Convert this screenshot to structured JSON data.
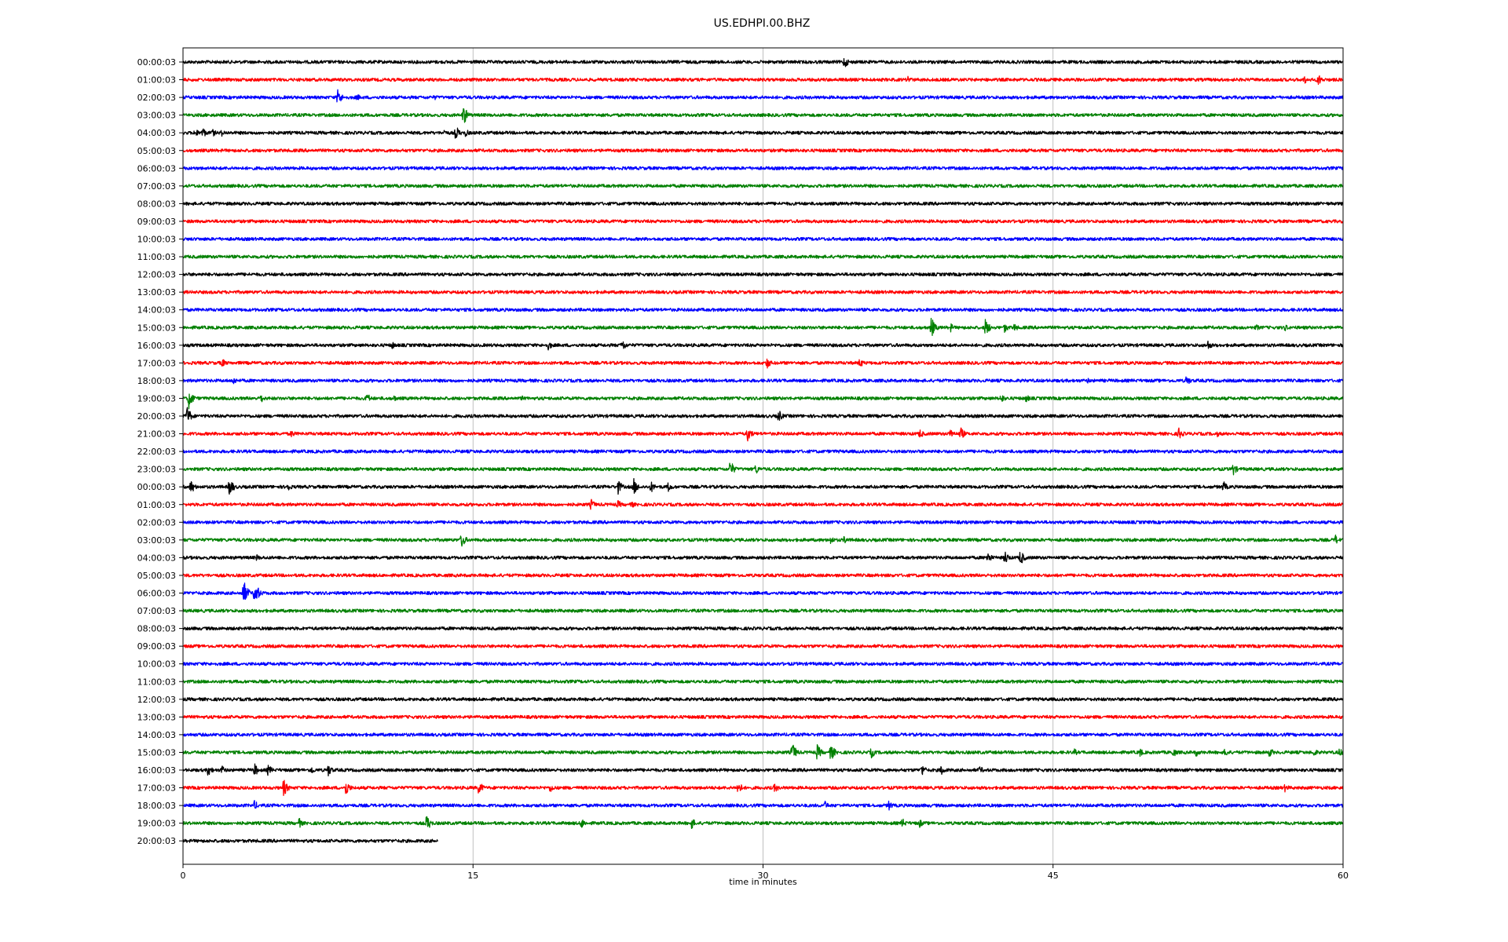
{
  "chart_data": {
    "type": "line",
    "title": "US.EDHPI.00.BHZ",
    "xlabel": "time in minutes",
    "ylabel": "",
    "xlim": [
      0,
      60
    ],
    "x_ticks": [
      0,
      15,
      30,
      45,
      60
    ],
    "x_tick_labels": [
      "0",
      "15",
      "30",
      "45",
      "60"
    ],
    "grid": "vertical lines at 15, 30, 45",
    "trace_colors_cycle": [
      "#000000",
      "#ff0000",
      "#0000ff",
      "#008000"
    ],
    "traces": [
      {
        "label": "00:00:03",
        "color": "#000000",
        "end_min": 60,
        "events": [
          [
            34.2,
            9
          ]
        ]
      },
      {
        "label": "01:00:03",
        "color": "#ff0000",
        "end_min": 60,
        "events": [
          [
            37.5,
            6
          ],
          [
            58,
            6
          ],
          [
            58.7,
            9
          ]
        ]
      },
      {
        "label": "02:00:03",
        "color": "#0000ff",
        "end_min": 60,
        "events": [
          [
            8,
            12
          ],
          [
            9,
            5
          ],
          [
            13,
            4
          ]
        ]
      },
      {
        "label": "03:00:03",
        "color": "#008000",
        "end_min": 60,
        "events": [
          [
            14.5,
            14
          ]
        ]
      },
      {
        "label": "04:00:03",
        "color": "#000000",
        "end_min": 60,
        "events": [
          [
            0.6,
            7
          ],
          [
            1,
            8
          ],
          [
            1.5,
            6
          ],
          [
            2,
            5
          ],
          [
            13.5,
            5
          ],
          [
            14.1,
            10
          ],
          [
            14.6,
            6
          ]
        ]
      },
      {
        "label": "05:00:03",
        "color": "#ff0000",
        "end_min": 60,
        "events": []
      },
      {
        "label": "06:00:03",
        "color": "#0000ff",
        "end_min": 60,
        "events": []
      },
      {
        "label": "07:00:03",
        "color": "#008000",
        "end_min": 60,
        "events": []
      },
      {
        "label": "08:00:03",
        "color": "#000000",
        "end_min": 60,
        "events": []
      },
      {
        "label": "09:00:03",
        "color": "#ff0000",
        "end_min": 60,
        "events": []
      },
      {
        "label": "10:00:03",
        "color": "#0000ff",
        "end_min": 60,
        "events": []
      },
      {
        "label": "11:00:03",
        "color": "#008000",
        "end_min": 60,
        "events": []
      },
      {
        "label": "12:00:03",
        "color": "#000000",
        "end_min": 60,
        "events": []
      },
      {
        "label": "13:00:03",
        "color": "#ff0000",
        "end_min": 60,
        "events": []
      },
      {
        "label": "14:00:03",
        "color": "#0000ff",
        "end_min": 60,
        "events": []
      },
      {
        "label": "15:00:03",
        "color": "#008000",
        "end_min": 60,
        "events": [
          [
            38.7,
            14
          ],
          [
            39.7,
            6
          ],
          [
            41.5,
            13
          ],
          [
            42.5,
            7
          ],
          [
            43,
            6
          ],
          [
            55.5,
            5
          ],
          [
            57,
            5
          ]
        ]
      },
      {
        "label": "16:00:03",
        "color": "#000000",
        "end_min": 60,
        "events": [
          [
            10.8,
            6
          ],
          [
            18.9,
            7
          ],
          [
            22.7,
            9
          ],
          [
            53,
            7
          ]
        ]
      },
      {
        "label": "17:00:03",
        "color": "#ff0000",
        "end_min": 60,
        "events": [
          [
            2,
            7
          ],
          [
            30.2,
            8
          ],
          [
            35,
            7
          ]
        ]
      },
      {
        "label": "18:00:03",
        "color": "#0000ff",
        "end_min": 60,
        "events": [
          [
            2.6,
            6
          ],
          [
            46.8,
            4
          ],
          [
            51.9,
            8
          ]
        ]
      },
      {
        "label": "19:00:03",
        "color": "#008000",
        "end_min": 60,
        "events": [
          [
            0.3,
            14
          ],
          [
            4,
            7
          ],
          [
            9.5,
            8
          ],
          [
            10.9,
            5
          ],
          [
            17.5,
            4
          ],
          [
            42.3,
            7
          ],
          [
            43.6,
            6
          ]
        ]
      },
      {
        "label": "20:00:03",
        "color": "#000000",
        "end_min": 60,
        "events": [
          [
            0.2,
            14
          ],
          [
            30.8,
            9
          ]
        ]
      },
      {
        "label": "21:00:03",
        "color": "#ff0000",
        "end_min": 60,
        "events": [
          [
            5.6,
            6
          ],
          [
            29.2,
            11
          ],
          [
            38.1,
            7
          ],
          [
            39.7,
            8
          ],
          [
            40.2,
            10
          ],
          [
            51.5,
            9
          ],
          [
            53.5,
            4
          ]
        ]
      },
      {
        "label": "22:00:03",
        "color": "#0000ff",
        "end_min": 60,
        "events": [
          [
            12.3,
            4
          ]
        ]
      },
      {
        "label": "23:00:03",
        "color": "#008000",
        "end_min": 60,
        "events": [
          [
            28.3,
            12
          ],
          [
            29.6,
            8
          ],
          [
            54.3,
            9
          ]
        ]
      },
      {
        "label": "00:00:03",
        "color": "#000000",
        "end_min": 60,
        "events": [
          [
            0.4,
            10
          ],
          [
            2.4,
            13
          ],
          [
            5.4,
            7
          ],
          [
            22.5,
            10
          ],
          [
            23.3,
            12
          ],
          [
            24.2,
            8
          ],
          [
            25.1,
            7
          ],
          [
            53.8,
            8
          ]
        ]
      },
      {
        "label": "01:00:03",
        "color": "#ff0000",
        "end_min": 60,
        "events": [
          [
            21.1,
            8
          ],
          [
            22.5,
            6
          ],
          [
            23.2,
            5
          ]
        ]
      },
      {
        "label": "02:00:03",
        "color": "#0000ff",
        "end_min": 60,
        "events": []
      },
      {
        "label": "03:00:03",
        "color": "#008000",
        "end_min": 60,
        "events": [
          [
            14.4,
            11
          ],
          [
            33.5,
            6
          ],
          [
            34.2,
            6
          ],
          [
            59.6,
            7
          ]
        ]
      },
      {
        "label": "04:00:03",
        "color": "#000000",
        "end_min": 60,
        "events": [
          [
            3.8,
            5
          ],
          [
            41.6,
            9
          ],
          [
            42.5,
            10
          ],
          [
            43.3,
            11
          ]
        ]
      },
      {
        "label": "05:00:03",
        "color": "#ff0000",
        "end_min": 60,
        "events": []
      },
      {
        "label": "06:00:03",
        "color": "#0000ff",
        "end_min": 60,
        "events": [
          [
            3.1,
            20
          ],
          [
            3.7,
            18
          ]
        ]
      },
      {
        "label": "07:00:03",
        "color": "#008000",
        "end_min": 60,
        "events": []
      },
      {
        "label": "08:00:03",
        "color": "#000000",
        "end_min": 60,
        "events": []
      },
      {
        "label": "09:00:03",
        "color": "#ff0000",
        "end_min": 60,
        "events": []
      },
      {
        "label": "10:00:03",
        "color": "#0000ff",
        "end_min": 60,
        "events": []
      },
      {
        "label": "11:00:03",
        "color": "#008000",
        "end_min": 60,
        "events": []
      },
      {
        "label": "12:00:03",
        "color": "#000000",
        "end_min": 60,
        "events": []
      },
      {
        "label": "13:00:03",
        "color": "#ff0000",
        "end_min": 60,
        "events": []
      },
      {
        "label": "14:00:03",
        "color": "#0000ff",
        "end_min": 60,
        "events": []
      },
      {
        "label": "15:00:03",
        "color": "#008000",
        "end_min": 60,
        "events": [
          [
            31.5,
            14
          ],
          [
            32.8,
            11
          ],
          [
            33.5,
            12
          ],
          [
            35.6,
            8
          ],
          [
            46.1,
            5
          ],
          [
            49.5,
            6
          ],
          [
            51.2,
            7
          ],
          [
            52.4,
            6
          ],
          [
            53.9,
            7
          ],
          [
            56.2,
            7
          ],
          [
            58.5,
            6
          ],
          [
            59.8,
            6
          ]
        ]
      },
      {
        "label": "16:00:03",
        "color": "#000000",
        "end_min": 60,
        "events": [
          [
            1.3,
            9
          ],
          [
            2,
            7
          ],
          [
            3.7,
            9
          ],
          [
            4.4,
            8
          ],
          [
            6.6,
            7
          ],
          [
            7.5,
            9
          ],
          [
            38.2,
            9
          ],
          [
            39.2,
            8
          ],
          [
            41.2,
            6
          ]
        ]
      },
      {
        "label": "17:00:03",
        "color": "#ff0000",
        "end_min": 60,
        "events": [
          [
            5.2,
            12
          ],
          [
            8.4,
            12
          ],
          [
            15.3,
            10
          ],
          [
            19,
            7
          ],
          [
            28.7,
            10
          ],
          [
            30.6,
            7
          ],
          [
            57,
            6
          ]
        ]
      },
      {
        "label": "18:00:03",
        "color": "#0000ff",
        "end_min": 60,
        "events": [
          [
            3.7,
            7
          ],
          [
            33.2,
            6
          ],
          [
            36.5,
            7
          ]
        ]
      },
      {
        "label": "19:00:03",
        "color": "#008000",
        "end_min": 60,
        "events": [
          [
            6,
            7
          ],
          [
            12.6,
            12
          ],
          [
            20.6,
            8
          ],
          [
            26.3,
            8
          ],
          [
            37.2,
            7
          ],
          [
            38.1,
            6
          ]
        ]
      },
      {
        "label": "20:00:03",
        "color": "#000000",
        "end_min": 13.2,
        "events": []
      }
    ]
  }
}
